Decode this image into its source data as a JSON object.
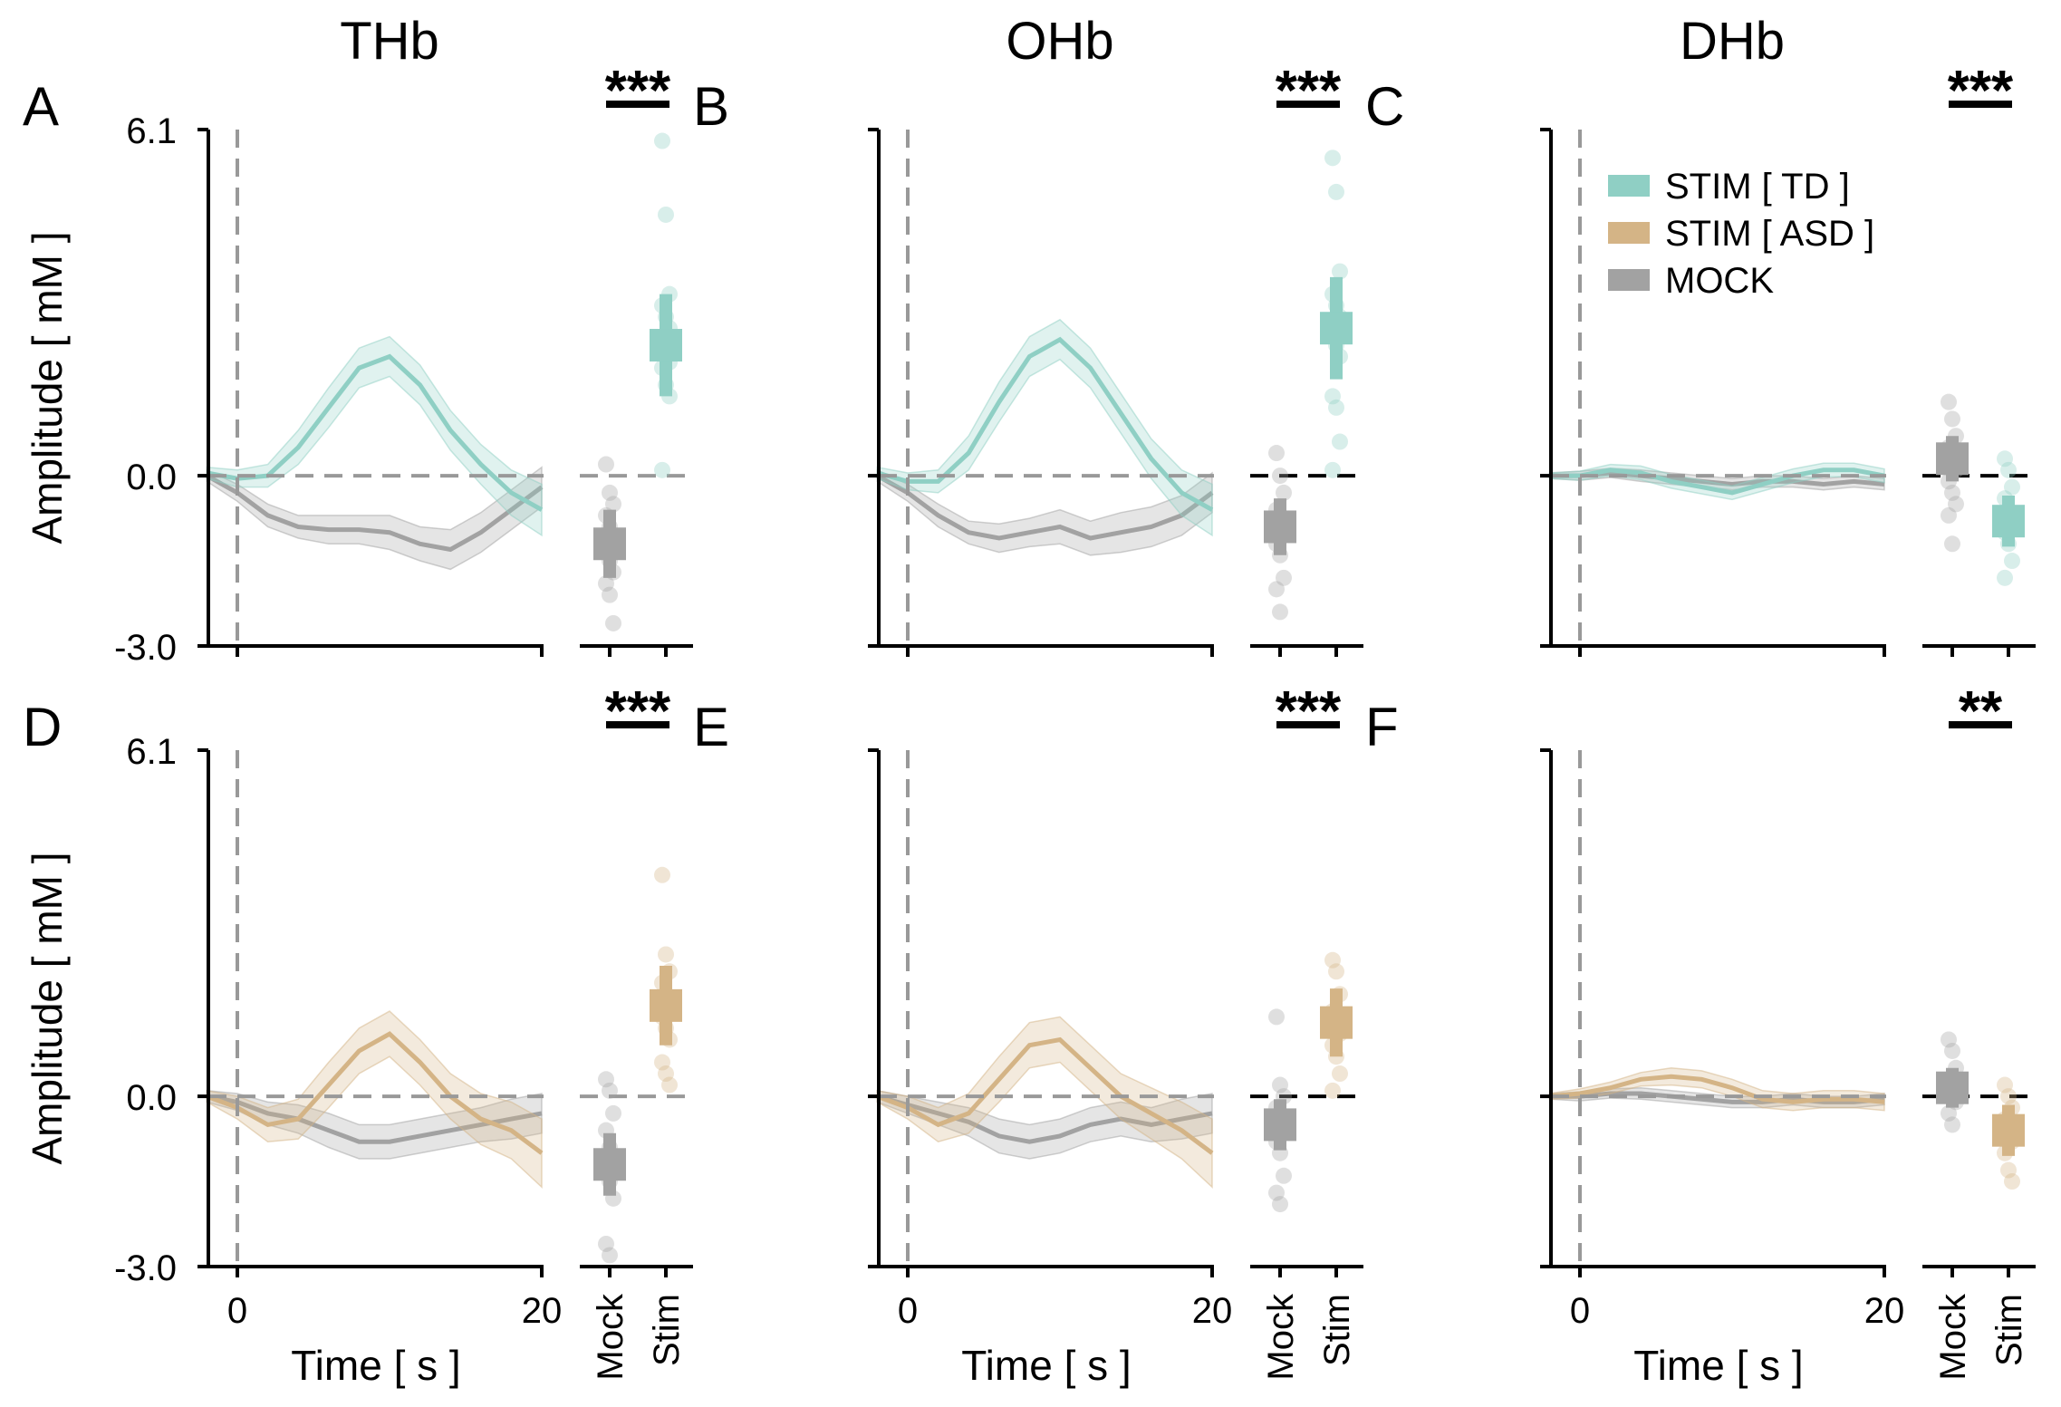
{
  "figure": {
    "ylabel": "Amplitude [ mM ]",
    "xlabel": "Time [ s ]",
    "column_titles": [
      "THb",
      "OHb",
      "DHb"
    ],
    "y_ticks": [
      "6.1",
      "0.0",
      "-3.0"
    ],
    "x_ticks": [
      "0",
      "20"
    ],
    "group_ticks": [
      "Mock",
      "Stim"
    ]
  },
  "legend": {
    "items": [
      {
        "label": "STIM [ TD ]",
        "color": "#8fcfc4"
      },
      {
        "label": "STIM [ ASD ]",
        "color": "#d4b486"
      },
      {
        "label": "MOCK",
        "color": "#a2a2a2"
      }
    ]
  },
  "colors": {
    "td": "#8fcfc4",
    "asd": "#d4b486",
    "mock": "#a2a2a2"
  },
  "chart_data": [
    {
      "panel": "A",
      "type": "line",
      "title": "THb",
      "stim_group": "td",
      "significance": "***",
      "ylim": [
        -3.0,
        6.1
      ],
      "xlim": [
        -2,
        20
      ],
      "time_s": [
        -2,
        0,
        2,
        4,
        6,
        8,
        10,
        12,
        14,
        16,
        18,
        20
      ],
      "stim_mean": [
        0.05,
        -0.05,
        0.0,
        0.5,
        1.2,
        1.9,
        2.1,
        1.6,
        0.8,
        0.2,
        -0.3,
        -0.6
      ],
      "stim_sem": [
        0.1,
        0.15,
        0.2,
        0.3,
        0.35,
        0.35,
        0.35,
        0.35,
        0.35,
        0.35,
        0.4,
        0.45
      ],
      "mock_mean": [
        0.0,
        -0.3,
        -0.7,
        -0.9,
        -0.95,
        -0.95,
        -1.0,
        -1.2,
        -1.3,
        -1.0,
        -0.6,
        -0.2
      ],
      "mock_sem": [
        0.1,
        0.15,
        0.2,
        0.2,
        0.25,
        0.25,
        0.3,
        0.3,
        0.35,
        0.35,
        0.35,
        0.35
      ],
      "mock_box": {
        "mean": -1.2,
        "err": 0.6,
        "points": [
          0.2,
          -0.3,
          -0.5,
          -0.7,
          -0.9,
          -1.1,
          -1.3,
          -1.5,
          -1.7,
          -1.9,
          -2.1,
          -2.6
        ]
      },
      "stim_box": {
        "mean": 2.3,
        "err": 0.9,
        "points": [
          5.9,
          4.6,
          3.2,
          3.0,
          2.8,
          2.6,
          2.4,
          2.2,
          2.0,
          1.9,
          1.6,
          1.4,
          0.1
        ]
      }
    },
    {
      "panel": "B",
      "type": "line",
      "title": "OHb",
      "stim_group": "td",
      "significance": "***",
      "ylim": [
        -3.0,
        6.1
      ],
      "xlim": [
        -2,
        20
      ],
      "time_s": [
        -2,
        0,
        2,
        4,
        6,
        8,
        10,
        12,
        14,
        16,
        18,
        20
      ],
      "stim_mean": [
        0.05,
        -0.1,
        -0.1,
        0.4,
        1.3,
        2.1,
        2.4,
        1.9,
        1.1,
        0.3,
        -0.3,
        -0.6
      ],
      "stim_sem": [
        0.1,
        0.15,
        0.2,
        0.3,
        0.35,
        0.35,
        0.35,
        0.35,
        0.35,
        0.35,
        0.4,
        0.45
      ],
      "mock_mean": [
        0.0,
        -0.3,
        -0.7,
        -1.0,
        -1.1,
        -1.0,
        -0.9,
        -1.1,
        -1.0,
        -0.9,
        -0.7,
        -0.3
      ],
      "mock_sem": [
        0.1,
        0.15,
        0.2,
        0.2,
        0.25,
        0.25,
        0.3,
        0.3,
        0.35,
        0.35,
        0.35,
        0.35
      ],
      "mock_box": {
        "mean": -0.9,
        "err": 0.5,
        "points": [
          0.4,
          0.0,
          -0.3,
          -0.6,
          -0.8,
          -1.0,
          -1.2,
          -1.4,
          -1.8,
          -2.0,
          -2.4
        ]
      },
      "stim_box": {
        "mean": 2.6,
        "err": 0.9,
        "points": [
          5.6,
          5.0,
          3.6,
          3.2,
          3.0,
          2.8,
          2.5,
          2.3,
          2.1,
          1.4,
          1.2,
          0.6,
          0.1
        ]
      }
    },
    {
      "panel": "C",
      "type": "line",
      "title": "DHb",
      "stim_group": "td",
      "significance": "***",
      "ylim": [
        -3.0,
        6.1
      ],
      "xlim": [
        -2,
        20
      ],
      "time_s": [
        -2,
        0,
        2,
        4,
        6,
        8,
        10,
        12,
        14,
        16,
        18,
        20
      ],
      "stim_mean": [
        0.0,
        0.0,
        0.1,
        0.05,
        -0.1,
        -0.2,
        -0.3,
        -0.15,
        0.0,
        0.1,
        0.1,
        0.0
      ],
      "stim_sem": [
        0.05,
        0.08,
        0.1,
        0.12,
        0.12,
        0.12,
        0.12,
        0.12,
        0.12,
        0.12,
        0.12,
        0.12
      ],
      "mock_mean": [
        0.0,
        0.0,
        0.05,
        0.0,
        -0.05,
        -0.1,
        -0.15,
        -0.1,
        -0.1,
        -0.15,
        -0.1,
        -0.15
      ],
      "mock_sem": [
        0.05,
        0.08,
        0.08,
        0.1,
        0.1,
        0.1,
        0.1,
        0.1,
        0.1,
        0.1,
        0.1,
        0.1
      ],
      "mock_box": {
        "mean": 0.3,
        "err": 0.4,
        "points": [
          1.3,
          1.0,
          0.7,
          0.5,
          0.3,
          0.1,
          -0.1,
          -0.3,
          -0.5,
          -0.7,
          -1.2
        ]
      },
      "stim_box": {
        "mean": -0.8,
        "err": 0.45,
        "points": [
          0.3,
          0.1,
          -0.2,
          -0.4,
          -0.6,
          -0.8,
          -1.0,
          -1.2,
          -1.5,
          -1.8
        ]
      }
    },
    {
      "panel": "D",
      "type": "line",
      "title": "",
      "stim_group": "asd",
      "significance": "***",
      "ylim": [
        -3.0,
        6.1
      ],
      "xlim": [
        -2,
        20
      ],
      "time_s": [
        -2,
        0,
        2,
        4,
        6,
        8,
        10,
        12,
        14,
        16,
        18,
        20
      ],
      "stim_mean": [
        0.0,
        -0.2,
        -0.5,
        -0.4,
        0.2,
        0.8,
        1.1,
        0.6,
        0.0,
        -0.4,
        -0.6,
        -1.0
      ],
      "stim_sem": [
        0.1,
        0.2,
        0.3,
        0.35,
        0.4,
        0.4,
        0.4,
        0.4,
        0.4,
        0.45,
        0.5,
        0.6
      ],
      "mock_mean": [
        0.0,
        -0.1,
        -0.3,
        -0.4,
        -0.6,
        -0.8,
        -0.8,
        -0.7,
        -0.6,
        -0.5,
        -0.4,
        -0.3
      ],
      "mock_sem": [
        0.1,
        0.15,
        0.2,
        0.25,
        0.3,
        0.3,
        0.3,
        0.3,
        0.3,
        0.3,
        0.35,
        0.35
      ],
      "mock_box": {
        "mean": -1.2,
        "err": 0.55,
        "points": [
          0.3,
          0.1,
          -0.3,
          -0.6,
          -0.9,
          -1.1,
          -1.3,
          -1.5,
          -1.8,
          -2.6,
          -2.8
        ]
      },
      "stim_box": {
        "mean": 1.6,
        "err": 0.7,
        "points": [
          3.9,
          2.5,
          2.2,
          2.0,
          1.8,
          1.6,
          1.4,
          1.2,
          1.0,
          0.6,
          0.4,
          0.2
        ]
      }
    },
    {
      "panel": "E",
      "type": "line",
      "title": "",
      "stim_group": "asd",
      "significance": "***",
      "ylim": [
        -3.0,
        6.1
      ],
      "xlim": [
        -2,
        20
      ],
      "time_s": [
        -2,
        0,
        2,
        4,
        6,
        8,
        10,
        12,
        14,
        16,
        18,
        20
      ],
      "stim_mean": [
        0.0,
        -0.2,
        -0.5,
        -0.3,
        0.3,
        0.9,
        1.0,
        0.5,
        0.0,
        -0.3,
        -0.6,
        -1.0
      ],
      "stim_sem": [
        0.1,
        0.2,
        0.3,
        0.35,
        0.4,
        0.4,
        0.4,
        0.4,
        0.4,
        0.45,
        0.5,
        0.6
      ],
      "mock_mean": [
        0.0,
        -0.15,
        -0.3,
        -0.45,
        -0.7,
        -0.8,
        -0.7,
        -0.5,
        -0.4,
        -0.5,
        -0.4,
        -0.3
      ],
      "mock_sem": [
        0.1,
        0.15,
        0.2,
        0.25,
        0.3,
        0.3,
        0.3,
        0.3,
        0.3,
        0.3,
        0.35,
        0.35
      ],
      "mock_box": {
        "mean": -0.5,
        "err": 0.45,
        "points": [
          1.4,
          0.2,
          0.0,
          -0.2,
          -0.4,
          -0.6,
          -0.8,
          -1.0,
          -1.4,
          -1.7,
          -1.9
        ]
      },
      "stim_box": {
        "mean": 1.3,
        "err": 0.6,
        "points": [
          2.4,
          2.2,
          1.8,
          1.5,
          1.3,
          1.1,
          0.9,
          0.7,
          0.4,
          0.1
        ]
      }
    },
    {
      "panel": "F",
      "type": "line",
      "title": "",
      "stim_group": "asd",
      "significance": "**",
      "ylim": [
        -3.0,
        6.1
      ],
      "xlim": [
        -2,
        20
      ],
      "time_s": [
        -2,
        0,
        2,
        4,
        6,
        8,
        10,
        12,
        14,
        16,
        18,
        20
      ],
      "stim_mean": [
        0.0,
        0.05,
        0.15,
        0.3,
        0.35,
        0.3,
        0.15,
        -0.05,
        -0.1,
        -0.05,
        -0.05,
        -0.1
      ],
      "stim_sem": [
        0.05,
        0.08,
        0.1,
        0.12,
        0.15,
        0.15,
        0.15,
        0.15,
        0.15,
        0.15,
        0.15,
        0.15
      ],
      "mock_mean": [
        0.0,
        0.0,
        0.05,
        0.05,
        0.0,
        -0.05,
        -0.1,
        -0.1,
        -0.05,
        -0.1,
        -0.1,
        -0.05
      ],
      "mock_sem": [
        0.05,
        0.08,
        0.08,
        0.1,
        0.1,
        0.1,
        0.1,
        0.1,
        0.1,
        0.1,
        0.1,
        0.1
      ],
      "mock_box": {
        "mean": 0.15,
        "err": 0.35,
        "points": [
          1.0,
          0.8,
          0.5,
          0.3,
          0.1,
          -0.1,
          -0.3,
          -0.5
        ]
      },
      "stim_box": {
        "mean": -0.6,
        "err": 0.45,
        "points": [
          0.2,
          0.0,
          -0.2,
          -0.4,
          -0.6,
          -0.8,
          -1.0,
          -1.3,
          -1.5
        ]
      }
    }
  ]
}
